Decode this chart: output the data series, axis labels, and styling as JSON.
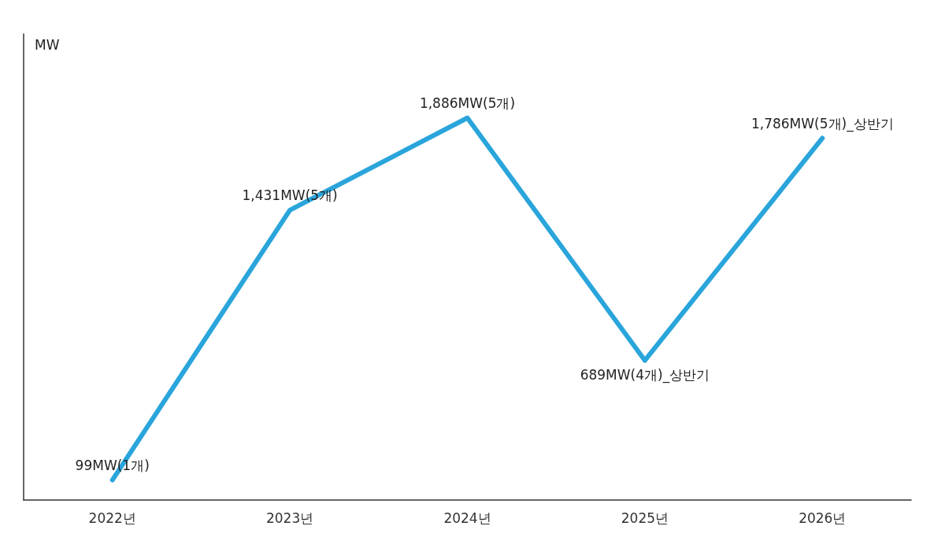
{
  "chart_data": {
    "type": "line",
    "ylabel": "MW",
    "categories": [
      "2022년",
      "2023년",
      "2024년",
      "2025년",
      "2026년"
    ],
    "series": [
      {
        "color": "#2aa5db",
        "values": [
          99,
          1431,
          1886,
          689,
          1786
        ],
        "value_labels": [
          "99MW(1개)",
          "1,431MW(5개)",
          "1,886MW(5개)",
          "689MW(4개)_상반기",
          "1,786MW(5개)_상반기"
        ]
      }
    ],
    "tick_labels": "x",
    "grid": false,
    "marker": "none",
    "line_style": "solid"
  }
}
